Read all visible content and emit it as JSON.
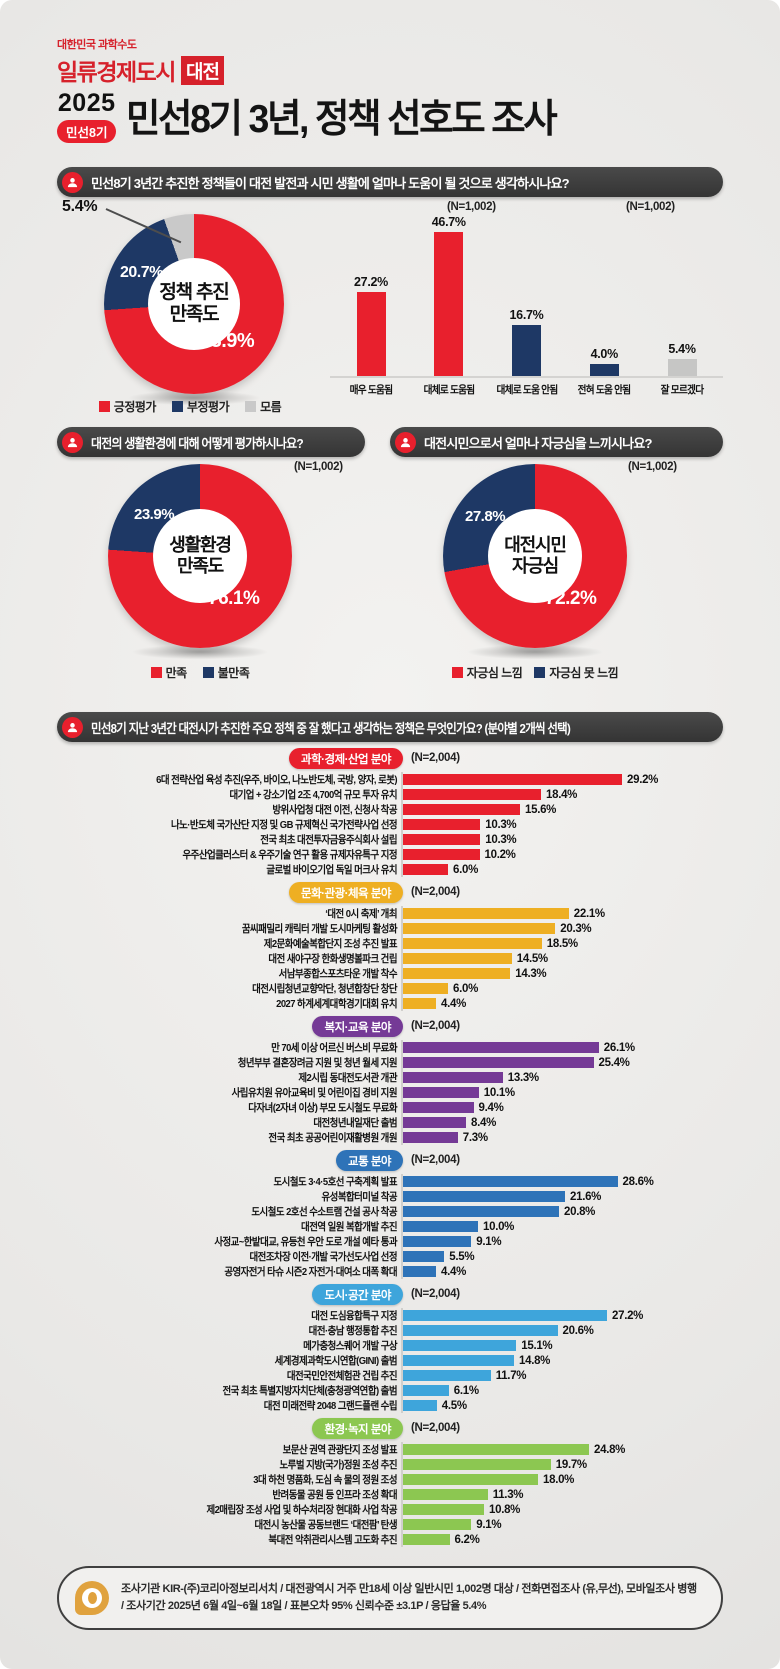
{
  "logo": {
    "tagline": "대한민국 과학수도",
    "title": "일류경제도시",
    "badge": "대전"
  },
  "header": {
    "year": "2025",
    "badge": "민선8기",
    "title": "민선8기 3년, 정책 선호도 조사"
  },
  "questions": {
    "q1": "민선8기 3년간 추진한 정책들이 대전 발전과 시민 생활에 얼마나 도움이 될 것으로 생각하시나요?",
    "q2": "대전의 생활환경에 대해 어떻게 평가하시나요?",
    "q3": "대전시민으로서 얼마나 자긍심을 느끼시나요?",
    "q4": "민선8기 지난 3년간 대전시가 추진한 주요 정책 중 잘 했다고 생각하는 정책은 무엇인가요? (분야별 2개씩 선택)"
  },
  "chart_data": [
    {
      "id": "policy-satisfaction-donut",
      "type": "pie",
      "title": "정책 추진 만족도",
      "center_lines": [
        "정책 추진",
        "만족도"
      ],
      "n": "(N=1,002)",
      "labels": [
        "긍정평가",
        "부정평가",
        "모름"
      ],
      "values": [
        73.9,
        20.7,
        5.4
      ],
      "colors": [
        "#e8202d",
        "#1e3865",
        "#c9c9c9"
      ],
      "legend_position": "bottom"
    },
    {
      "id": "policy-help-bars",
      "type": "bar",
      "orientation": "vertical",
      "n": "(N=1,002)",
      "categories": [
        "매우 도움됨",
        "대체로 도움됨",
        "대체로 도움 안됨",
        "전혀 도움 안됨",
        "잘 모르겠다"
      ],
      "values": [
        27.2,
        46.7,
        16.7,
        4.0,
        5.4
      ],
      "colors": [
        "#e8202d",
        "#e8202d",
        "#1e3865",
        "#1e3865",
        "#c6c6c5"
      ],
      "ylim": [
        0,
        50
      ],
      "grid": false
    },
    {
      "id": "living-env-donut",
      "type": "pie",
      "title": "생활환경 만족도",
      "center_lines": [
        "생활환경",
        "만족도"
      ],
      "n": "(N=1,002)",
      "labels": [
        "만족",
        "불만족"
      ],
      "values": [
        76.1,
        23.9
      ],
      "colors": [
        "#e8202d",
        "#1e3865"
      ],
      "legend_position": "bottom"
    },
    {
      "id": "citizen-pride-donut",
      "type": "pie",
      "title": "대전시민 자긍심",
      "center_lines": [
        "대전시민",
        "자긍심"
      ],
      "n": "(N=1,002)",
      "labels": [
        "자긍심 느낌",
        "자긍심 못 느낌"
      ],
      "values": [
        72.2,
        27.8
      ],
      "colors": [
        "#e8202d",
        "#1e3865"
      ],
      "legend_position": "bottom"
    },
    {
      "id": "science-economy-industry",
      "type": "bar",
      "orientation": "horizontal",
      "title": "과학·경제·산업 분야",
      "n": "(N=2,004)",
      "color": "#e8202d",
      "categories": [
        "6대 전략산업 육성 추진(우주, 바이오, 나노반도체, 국방, 양자, 로봇)",
        "대기업 + 강소기업 2조 4,700억 규모 투자 유치",
        "방위사업청 대전 이전, 신청사 착공",
        "나노·반도체 국가산단 지정 및 GB 규제혁신 국가전략사업 선정",
        "전국 최초 대전투자금융주식회사 설립",
        "우주산업클러스터 & 우주기술 연구 활용 규제자유특구 지정",
        "글로벌 바이오기업 독일 머크사 유치"
      ],
      "values": [
        29.2,
        18.4,
        15.6,
        10.3,
        10.3,
        10.2,
        6.0
      ],
      "xlim": [
        0,
        30
      ]
    },
    {
      "id": "culture-tourism-sports",
      "type": "bar",
      "orientation": "horizontal",
      "title": "문화·관광·체육 분야",
      "n": "(N=2,004)",
      "color": "#eeaf23",
      "categories": [
        "‘대전 0시 축제’ 개최",
        "꿈씨패밀리 캐릭터 개발 도시마케팅 활성화",
        "제2문화예술복합단지 조성 추진 발표",
        "대전 새야구장 한화생명볼파크 건립",
        "서남부종합스포츠타운 개발 착수",
        "대전시립청년교향악단, 청년합창단 창단",
        "2027 하계세계대학경기대회 유치"
      ],
      "values": [
        22.1,
        20.3,
        18.5,
        14.5,
        14.3,
        6.0,
        4.4
      ],
      "xlim": [
        0,
        30
      ]
    },
    {
      "id": "welfare-education",
      "type": "bar",
      "orientation": "horizontal",
      "title": "복지·교육 분야",
      "n": "(N=2,004)",
      "color": "#753a96",
      "categories": [
        "만 70세 이상 어르신 버스비 무료화",
        "청년부부 결혼장려금 지원 및 청년 월세 지원",
        "제2시립 동대전도서관 개관",
        "사립유치원 유아교육비 및 어린이집 경비 지원",
        "다자녀(2자녀 이상) 부모 도시철도 무료화",
        "대전청년내일재단 출범",
        "전국 최초 공공어린이재활병원 개원"
      ],
      "values": [
        26.1,
        25.4,
        13.3,
        10.1,
        9.4,
        8.4,
        7.3
      ],
      "xlim": [
        0,
        30
      ]
    },
    {
      "id": "transportation",
      "type": "bar",
      "orientation": "horizontal",
      "title": "교통 분야",
      "n": "(N=2,004)",
      "color": "#2e73b8",
      "categories": [
        "도시철도 3·4·5호선 구축계획 발표",
        "유성복합터미널 착공",
        "도시철도 2호선 수소트램 건설 공사 착공",
        "대전역 일원 복합개발 추진",
        "사정교~한밭대교, 유등천 우안 도로 개설 예타 통과",
        "대전조차장 이전·개발 국가선도사업 선정",
        "공영자전거 타슈 시즌2 자전거·대여소 대폭 확대"
      ],
      "values": [
        28.6,
        21.6,
        20.8,
        10.0,
        9.1,
        5.5,
        4.4
      ],
      "xlim": [
        0,
        30
      ]
    },
    {
      "id": "city-space",
      "type": "bar",
      "orientation": "horizontal",
      "title": "도시·공간 분야",
      "n": "(N=2,004)",
      "color": "#3ea5db",
      "categories": [
        "대전 도심융합특구 지정",
        "대전·충남 행정통합 추진",
        "메가충청스퀘어 개발 구상",
        "세계경제과학도시연합(GINI) 출범",
        "대전국민안전체험관 건립 추진",
        "전국 최초 특별지방자치단체(충청광역연합) 출범",
        "대전 미래전략 2048 그랜드플랜 수립"
      ],
      "values": [
        27.2,
        20.6,
        15.1,
        14.8,
        11.7,
        6.1,
        4.5
      ],
      "xlim": [
        0,
        30
      ]
    },
    {
      "id": "environment-green",
      "type": "bar",
      "orientation": "horizontal",
      "title": "환경·녹지 분야",
      "n": "(N=2,004)",
      "color": "#8cc751",
      "categories": [
        "보문산 권역 관광단지 조성 발표",
        "노루벌 지방(국가)정원 조성 추진",
        "3대 하천 명품화, 도심 속 물의 정원 조성",
        "반려동물 공원 등 인프라 조성 확대",
        "제2매립장 조성 사업 및 하수처리장 현대화 사업 착공",
        "대전시 농산물 공동브랜드 ‘대전팜’ 탄생",
        "북대전 악취관리시스템 고도화 추진"
      ],
      "values": [
        24.8,
        19.7,
        18.0,
        11.3,
        10.8,
        9.1,
        6.2
      ],
      "xlim": [
        0,
        30
      ]
    }
  ],
  "footer": {
    "line1": "조사기관 KIR-(주)코리아정보리서치 / 대전광역시 거주 만18세 이상 일반시민 1,002명 대상  / 전화면접조사 (유,무선), 모바일조사 병행",
    "line2": "/ 조사기간 2025년 6월  4일~6월 18일 /  표본오차 95% 신뢰수준 ±3.1P / 응답율 5.4%"
  }
}
